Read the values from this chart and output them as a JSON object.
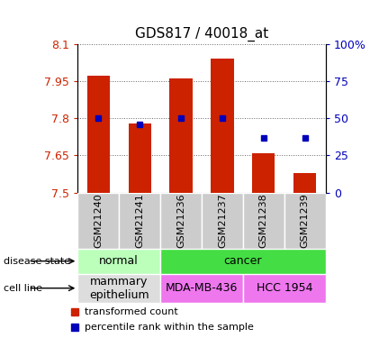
{
  "title": "GDS817 / 40018_at",
  "samples": [
    "GSM21240",
    "GSM21241",
    "GSM21236",
    "GSM21237",
    "GSM21238",
    "GSM21239"
  ],
  "bar_values": [
    7.97,
    7.78,
    7.96,
    8.04,
    7.66,
    7.58
  ],
  "percentile_values": [
    50,
    46,
    50,
    50,
    37,
    37
  ],
  "y_min": 7.5,
  "y_max": 8.1,
  "y_ticks": [
    7.5,
    7.65,
    7.8,
    7.95,
    8.1
  ],
  "y_tick_labels": [
    "7.5",
    "7.65",
    "7.8",
    "7.95",
    "8.1"
  ],
  "right_y_ticks": [
    0,
    25,
    50,
    75,
    100
  ],
  "right_y_labels": [
    "0",
    "25",
    "50",
    "75",
    "100%"
  ],
  "bar_color": "#cc2200",
  "dot_color": "#0000bb",
  "grid_color": "#000000",
  "disease_state": [
    {
      "label": "normal",
      "cols": [
        0,
        1
      ],
      "color": "#bbffbb"
    },
    {
      "label": "cancer",
      "cols": [
        2,
        3,
        4,
        5
      ],
      "color": "#44dd44"
    }
  ],
  "cell_line": [
    {
      "label": "mammary\nepithelium",
      "cols": [
        0,
        1
      ],
      "color": "#dddddd"
    },
    {
      "label": "MDA-MB-436",
      "cols": [
        2,
        3
      ],
      "color": "#ee77ee"
    },
    {
      "label": "HCC 1954",
      "cols": [
        4,
        5
      ],
      "color": "#ee77ee"
    }
  ],
  "left_label_disease": "disease state",
  "left_label_cell": "cell line",
  "legend_bar": "transformed count",
  "legend_dot": "percentile rank within the sample",
  "bar_width": 0.55,
  "sample_bg_color": "#cccccc",
  "sample_sep_color": "#ffffff",
  "border_color": "#888888"
}
